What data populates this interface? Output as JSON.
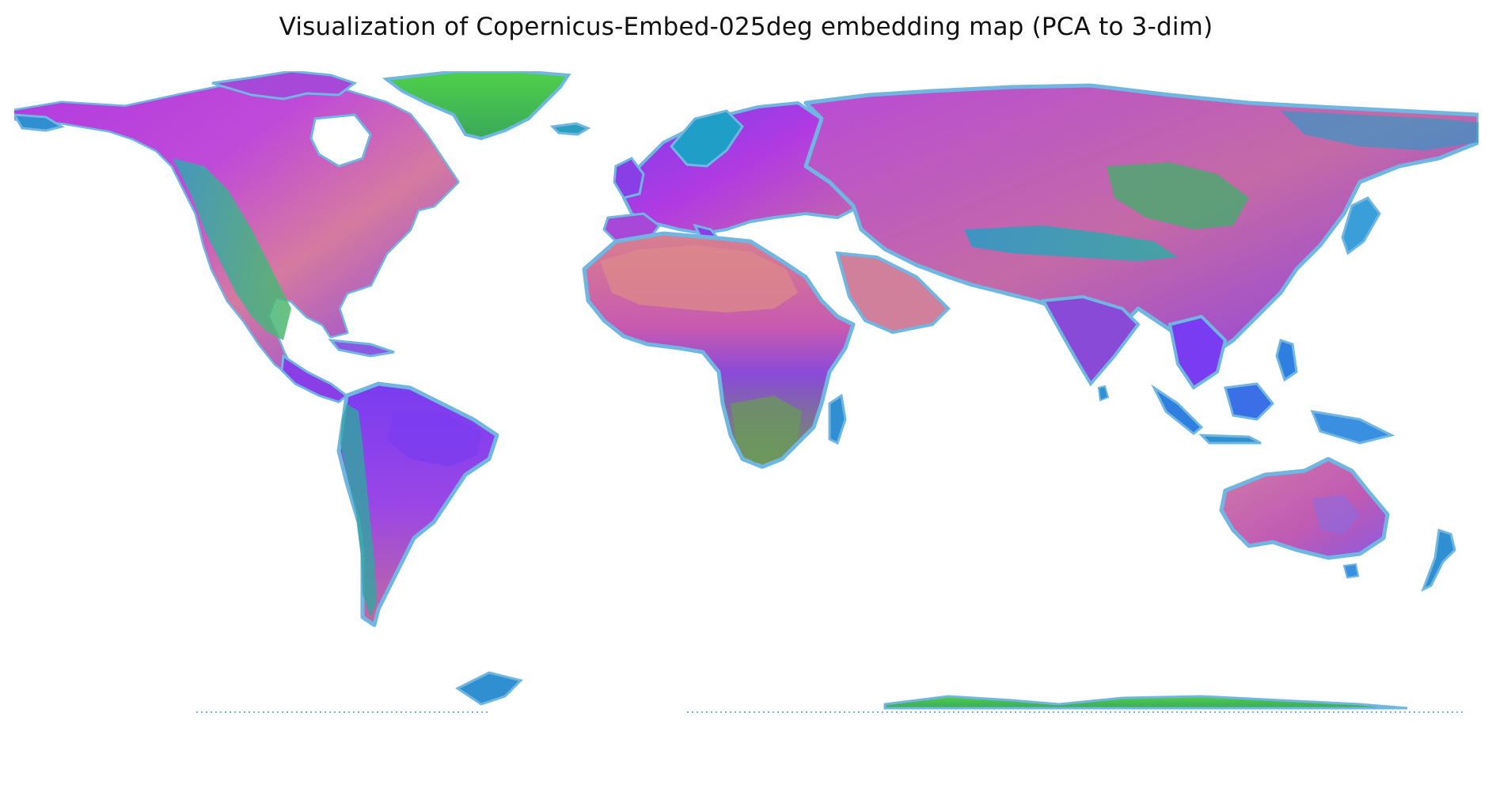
{
  "figure": {
    "title": "Visualization of Copernicus-Embed-025deg embedding map (PCA to 3-dim)"
  },
  "map": {
    "projection": "equirectangular",
    "encoding": "PCA to 3-dim RGB",
    "background": "#ffffff",
    "coast_halo": "#6fb6e3",
    "palette": {
      "magenta": "#b23be0",
      "violet": "#7a3cf0",
      "pink": "#d86a9a",
      "salmon": "#e08a8a",
      "teal": "#1f9fc8",
      "green": "#3fc24a",
      "olive": "#7a9a3e"
    }
  }
}
